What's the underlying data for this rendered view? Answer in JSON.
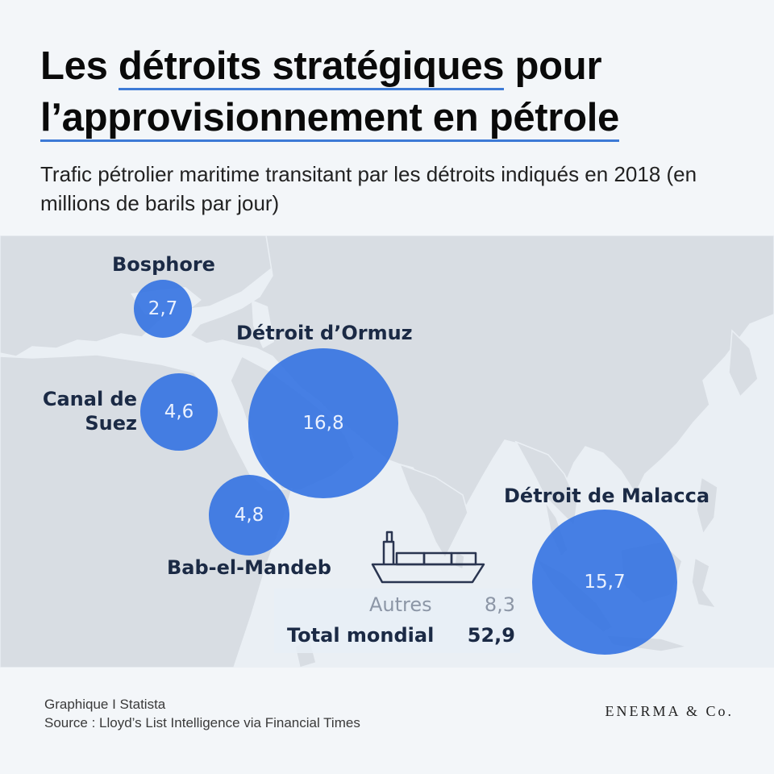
{
  "header": {
    "title_line1_pre": "Les ",
    "title_line1_ul": "détroits stratégiques",
    "title_line1_post": " pour",
    "title_line2": "l’approvisionnement en pétrole",
    "subtitle": "Trafic pétrolier maritime transitant par les détroits indiqués en 2018 (en millions de barils par jour)"
  },
  "straits": {
    "bosphore": {
      "label": "Bosphore",
      "value": "2,7"
    },
    "suez": {
      "label_line1": "Canal de",
      "label_line2": "Suez",
      "value": "4,6"
    },
    "ormuz": {
      "label": "Détroit d’Ormuz",
      "value": "16,8"
    },
    "bab": {
      "label": "Bab-el-Mandeb",
      "value": "4,8"
    },
    "malacca": {
      "label": "Détroit de Malacca",
      "value": "15,7"
    }
  },
  "totals": {
    "other_label": "Autres",
    "other_value": "8,3",
    "total_label": "Total mondial",
    "total_value": "52,9"
  },
  "footer": {
    "line1": "Graphique I Statista",
    "line2": "Source : Lloyd’s List Intelligence via Financial Times",
    "brand": "ENERMA & Co."
  },
  "colors": {
    "bubble": "#2f70e1",
    "title_underline": "#3d7ad6",
    "map_land": "#d8dde3",
    "map_sea": "#eaeff4"
  },
  "icons": [
    "cargo-ship-icon"
  ]
}
